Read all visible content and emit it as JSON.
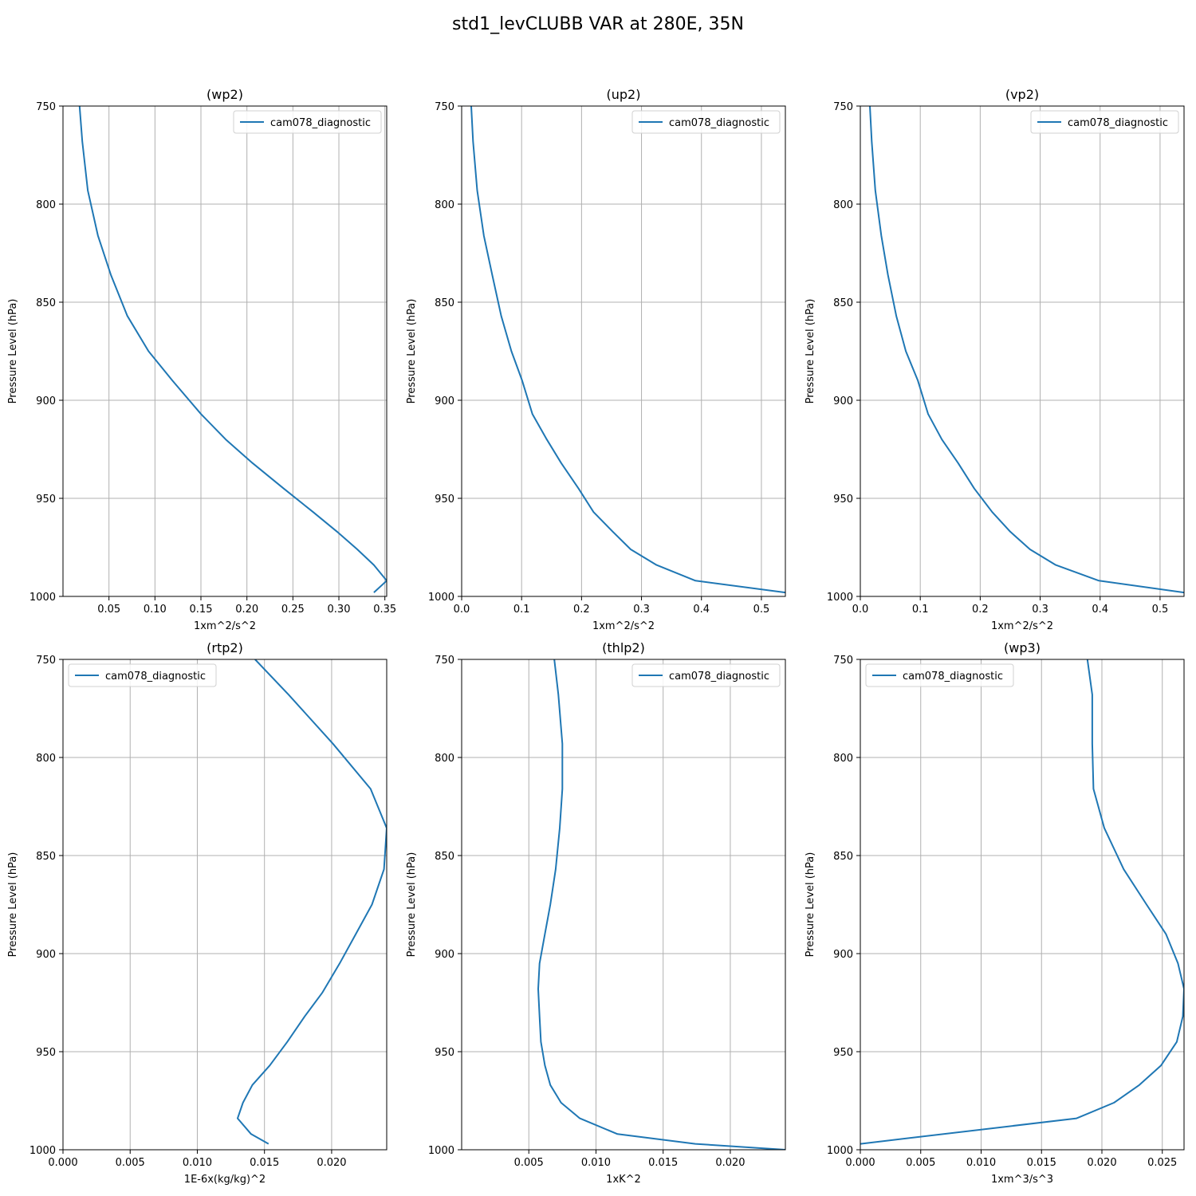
{
  "title": "std1_levCLUBB VAR at 280E, 35N",
  "colors": {
    "series": "#1f77b4",
    "grid": "#b0b0b0",
    "axes": "#000000"
  },
  "chart_data": [
    {
      "type": "line",
      "title": "(wp2)",
      "xlabel": "1xm^2/s^2",
      "ylabel": "Pressure Level (hPa)",
      "xlim": [
        0.0,
        0.352
      ],
      "ylim": [
        1000,
        750
      ],
      "xticks": [
        0.05,
        0.1,
        0.15,
        0.2,
        0.25,
        0.3,
        0.35
      ],
      "xtick_labels": [
        "0.05",
        "0.10",
        "0.15",
        "0.20",
        "0.25",
        "0.30",
        "0.35"
      ],
      "yticks": [
        750,
        800,
        850,
        900,
        950,
        1000
      ],
      "ytick_labels": [
        "750",
        "800",
        "850",
        "900",
        "950",
        "1000"
      ],
      "grid": true,
      "legend_position": "top-right",
      "series": [
        {
          "name": "cam078_diagnostic",
          "x": [
            0.018,
            0.021,
            0.027,
            0.038,
            0.052,
            0.07,
            0.093,
            0.119,
            0.15,
            0.177,
            0.206,
            0.24,
            0.272,
            0.298,
            0.32,
            0.338,
            0.352,
            0.338
          ],
          "y": [
            750,
            768,
            793,
            816,
            836,
            857,
            875,
            890,
            907,
            920,
            932,
            945,
            957,
            967,
            976,
            984,
            992,
            998
          ]
        }
      ]
    },
    {
      "type": "line",
      "title": "(up2)",
      "xlabel": "1xm^2/s^2",
      "ylabel": "Pressure Level (hPa)",
      "xlim": [
        0.0,
        0.54
      ],
      "ylim": [
        1000,
        750
      ],
      "xticks": [
        0.0,
        0.1,
        0.2,
        0.3,
        0.4,
        0.5
      ],
      "xtick_labels": [
        "0.0",
        "0.1",
        "0.2",
        "0.3",
        "0.4",
        "0.5"
      ],
      "yticks": [
        750,
        800,
        850,
        900,
        950,
        1000
      ],
      "ytick_labels": [
        "750",
        "800",
        "850",
        "900",
        "950",
        "1000"
      ],
      "grid": true,
      "legend_position": "top-right",
      "series": [
        {
          "name": "cam078_diagnostic",
          "x": [
            0.016,
            0.019,
            0.026,
            0.037,
            0.051,
            0.066,
            0.083,
            0.101,
            0.118,
            0.142,
            0.166,
            0.195,
            0.22,
            0.252,
            0.282,
            0.325,
            0.39,
            0.54
          ],
          "y": [
            750,
            768,
            793,
            816,
            836,
            857,
            875,
            890,
            907,
            920,
            932,
            945,
            957,
            967,
            976,
            984,
            992,
            998
          ]
        }
      ]
    },
    {
      "type": "line",
      "title": "(vp2)",
      "xlabel": "1xm^2/s^2",
      "ylabel": "Pressure Level (hPa)",
      "xlim": [
        0.0,
        0.54
      ],
      "ylim": [
        1000,
        750
      ],
      "xticks": [
        0.0,
        0.1,
        0.2,
        0.3,
        0.4,
        0.5
      ],
      "xtick_labels": [
        "0.0",
        "0.1",
        "0.2",
        "0.3",
        "0.4",
        "0.5"
      ],
      "yticks": [
        750,
        800,
        850,
        900,
        950,
        1000
      ],
      "ytick_labels": [
        "750",
        "800",
        "850",
        "900",
        "950",
        "1000"
      ],
      "grid": true,
      "legend_position": "top-right",
      "series": [
        {
          "name": "cam078_diagnostic",
          "x": [
            0.016,
            0.019,
            0.025,
            0.035,
            0.046,
            0.06,
            0.076,
            0.096,
            0.113,
            0.136,
            0.163,
            0.19,
            0.22,
            0.25,
            0.283,
            0.326,
            0.398,
            0.54
          ],
          "y": [
            750,
            768,
            793,
            816,
            836,
            857,
            875,
            890,
            907,
            920,
            932,
            945,
            957,
            967,
            976,
            984,
            992,
            998
          ]
        }
      ]
    },
    {
      "type": "line",
      "title": "(rtp2)",
      "xlabel": "1E-6x(kg/kg)^2",
      "ylabel": "Pressure Level (hPa)",
      "xlim": [
        0.0,
        0.0241
      ],
      "ylim": [
        1000,
        750
      ],
      "xticks": [
        0.0,
        0.005,
        0.01,
        0.015,
        0.02
      ],
      "xtick_labels": [
        "0.000",
        "0.005",
        "0.010",
        "0.015",
        "0.020"
      ],
      "yticks": [
        750,
        800,
        850,
        900,
        950,
        1000
      ],
      "ytick_labels": [
        "750",
        "800",
        "850",
        "900",
        "950",
        "1000"
      ],
      "grid": true,
      "legend_position": "top-left",
      "series": [
        {
          "name": "cam078_diagnostic",
          "x": [
            0.0143,
            0.0168,
            0.0201,
            0.0229,
            0.0241,
            0.0239,
            0.023,
            0.0218,
            0.0206,
            0.0193,
            0.018,
            0.0167,
            0.0154,
            0.0141,
            0.0134,
            0.013,
            0.014,
            0.0153
          ],
          "y": [
            750,
            768,
            793,
            816,
            836,
            857,
            875,
            890,
            905,
            920,
            932,
            945,
            957,
            967,
            976,
            984,
            992,
            997
          ]
        }
      ]
    },
    {
      "type": "line",
      "title": "(thlp2)",
      "xlabel": "1xK^2",
      "ylabel": "Pressure Level (hPa)",
      "xlim": [
        0.0,
        0.0241
      ],
      "ylim": [
        1000,
        750
      ],
      "xticks": [
        0.005,
        0.01,
        0.015,
        0.02
      ],
      "xtick_labels": [
        "0.005",
        "0.010",
        "0.015",
        "0.020"
      ],
      "yticks": [
        750,
        800,
        850,
        900,
        950,
        1000
      ],
      "ytick_labels": [
        "750",
        "800",
        "850",
        "900",
        "950",
        "1000"
      ],
      "grid": true,
      "legend_position": "top-right",
      "series": [
        {
          "name": "cam078_diagnostic",
          "x": [
            0.0069,
            0.0072,
            0.0075,
            0.0075,
            0.0073,
            0.007,
            0.0066,
            0.0062,
            0.0058,
            0.0057,
            0.0058,
            0.0059,
            0.0062,
            0.0066,
            0.0074,
            0.0088,
            0.0116,
            0.0174,
            0.0241
          ],
          "y": [
            750,
            768,
            793,
            816,
            836,
            857,
            875,
            890,
            905,
            918,
            932,
            945,
            957,
            967,
            976,
            984,
            992,
            997,
            1000
          ]
        }
      ]
    },
    {
      "type": "line",
      "title": "(wp3)",
      "xlabel": "1xm^3/s^3",
      "ylabel": "Pressure Level (hPa)",
      "xlim": [
        0.0,
        0.0268
      ],
      "ylim": [
        1000,
        750
      ],
      "xticks": [
        0.0,
        0.005,
        0.01,
        0.015,
        0.02,
        0.025
      ],
      "xtick_labels": [
        "0.000",
        "0.005",
        "0.010",
        "0.015",
        "0.020",
        "0.025"
      ],
      "yticks": [
        750,
        800,
        850,
        900,
        950,
        1000
      ],
      "ytick_labels": [
        "750",
        "800",
        "850",
        "900",
        "950",
        "1000"
      ],
      "grid": true,
      "legend_position": "top-left",
      "series": [
        {
          "name": "cam078_diagnostic",
          "x": [
            0.0188,
            0.0192,
            0.0192,
            0.0193,
            0.0202,
            0.0218,
            0.0237,
            0.0253,
            0.0263,
            0.0268,
            0.0267,
            0.0262,
            0.0249,
            0.0231,
            0.021,
            0.0179,
            0.0
          ],
          "y": [
            750,
            768,
            793,
            816,
            836,
            857,
            875,
            890,
            905,
            918,
            932,
            945,
            957,
            967,
            976,
            984,
            997
          ]
        }
      ]
    }
  ]
}
